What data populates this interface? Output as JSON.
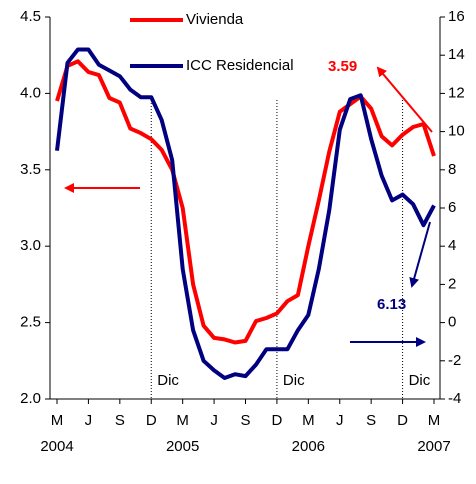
{
  "chart_data": {
    "type": "line",
    "categories": [
      "M",
      null,
      null,
      "J",
      null,
      null,
      "S",
      null,
      null,
      "D",
      null,
      null,
      "M",
      null,
      null,
      "J",
      null,
      null,
      "S",
      null,
      null,
      "D",
      null,
      null,
      "M",
      null,
      null,
      "J",
      null,
      null,
      "S",
      null,
      null,
      "D",
      null,
      null,
      "M"
    ],
    "year_labels": [
      "2004",
      null,
      null,
      null,
      null,
      null,
      null,
      null,
      null,
      null,
      null,
      null,
      "2005",
      null,
      null,
      null,
      null,
      null,
      null,
      null,
      null,
      null,
      null,
      null,
      "2006",
      null,
      null,
      null,
      null,
      null,
      null,
      null,
      null,
      null,
      null,
      null,
      "2007"
    ],
    "series": [
      {
        "name": "Vivienda",
        "color": "#ff0000",
        "values": [
          3.95,
          4.18,
          4.21,
          4.14,
          4.12,
          3.97,
          3.94,
          3.77,
          3.74,
          3.7,
          3.63,
          3.5,
          3.25,
          2.75,
          2.48,
          2.4,
          2.39,
          2.37,
          2.38,
          2.51,
          2.53,
          2.56,
          2.64,
          2.68,
          3.0,
          3.3,
          3.62,
          3.88,
          3.93,
          3.98,
          3.9,
          3.72,
          3.66,
          3.73,
          3.78,
          3.8,
          3.59
        ],
        "value_label": "3.59"
      },
      {
        "name": "ICC Residencial",
        "color": "#000080",
        "axis": "y2",
        "values": [
          9.0,
          13.6,
          14.3,
          14.3,
          13.5,
          13.2,
          12.9,
          12.2,
          11.8,
          11.8,
          10.6,
          8.5,
          2.8,
          -0.4,
          -2.0,
          -2.5,
          -2.9,
          -2.7,
          -2.8,
          -2.2,
          -1.4,
          -1.4,
          -1.4,
          -0.4,
          0.4,
          2.8,
          5.9,
          10.1,
          11.7,
          11.9,
          9.6,
          7.7,
          6.4,
          6.7,
          6.2,
          5.1,
          6.13
        ],
        "value_label": "6.13"
      }
    ],
    "ylim": [
      2,
      4.5
    ],
    "yticks": [
      {
        "value": 2,
        "label": "2.0"
      },
      2.5,
      {
        "value": 3,
        "label": "3.0"
      },
      3.5,
      {
        "value": 4,
        "label": "4.0"
      },
      4.5
    ],
    "y2lim": [
      -4,
      16
    ],
    "y2ticks": [
      -4,
      -2,
      0,
      2,
      4,
      6,
      8,
      10,
      12,
      14,
      16
    ],
    "annotations": [
      {
        "text": "Dic",
        "x": 9
      },
      {
        "text": "Dic",
        "x": 21
      },
      {
        "text": "Dic",
        "x": 33
      }
    ],
    "grid": false
  }
}
